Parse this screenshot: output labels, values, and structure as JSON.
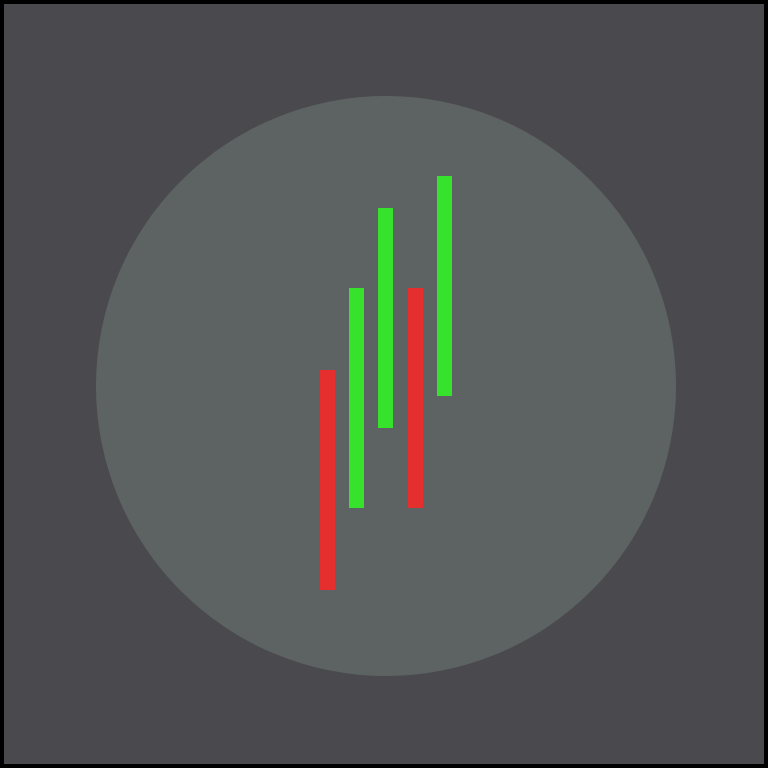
{
  "icon": {
    "name": "candlestick-chart-icon",
    "colors": {
      "page_border": "#000000",
      "background": "#4a4a4e",
      "disc": "#5d6362",
      "up": "#37e22d",
      "down": "#e52f2f"
    },
    "candles": [
      {
        "direction": "down"
      },
      {
        "direction": "up"
      },
      {
        "direction": "up"
      },
      {
        "direction": "down"
      },
      {
        "direction": "up"
      }
    ]
  }
}
